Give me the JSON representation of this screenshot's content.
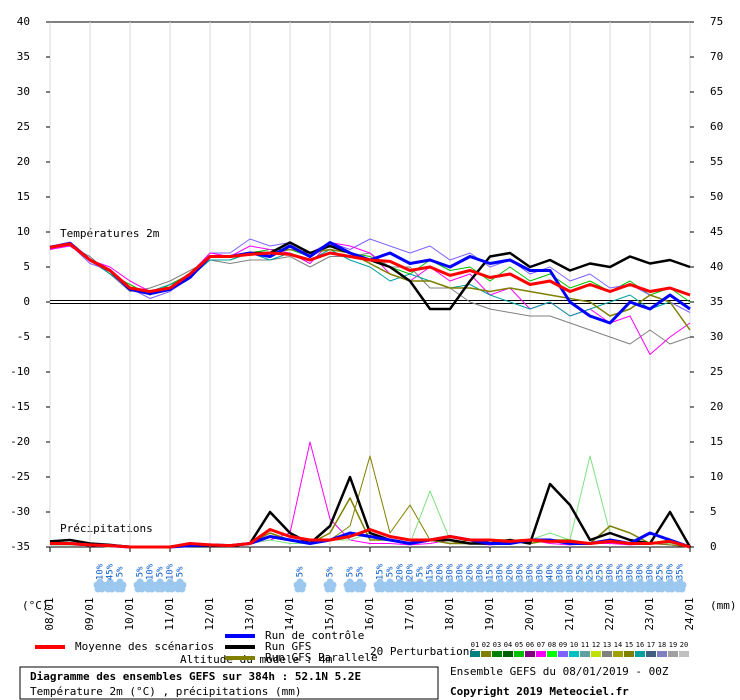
{
  "chart_data": {
    "type": "line",
    "temp_label": "Températures 2m",
    "precip_label": "Précipitations",
    "y_unit": "(°C)",
    "y2_unit": "(mm)",
    "xlim": [
      0,
      16
    ],
    "xticks": [
      {
        "value": 0,
        "label": "08/01"
      },
      {
        "value": 1,
        "label": "09/01"
      },
      {
        "value": 2,
        "label": "10/01"
      },
      {
        "value": 3,
        "label": "11/01"
      },
      {
        "value": 4,
        "label": "12/01"
      },
      {
        "value": 5,
        "label": "13/01"
      },
      {
        "value": 6,
        "label": "14/01"
      },
      {
        "value": 7,
        "label": "15/01"
      },
      {
        "value": 8,
        "label": "16/01"
      },
      {
        "value": 9,
        "label": "17/01"
      },
      {
        "value": 10,
        "label": "18/01"
      },
      {
        "value": 11,
        "label": "19/01"
      },
      {
        "value": 12,
        "label": "20/01"
      },
      {
        "value": 13,
        "label": "21/01"
      },
      {
        "value": 14,
        "label": "22/01"
      },
      {
        "value": 15,
        "label": "23/01"
      },
      {
        "value": 16,
        "label": "24/01"
      }
    ],
    "ylim": [
      -35,
      40
    ],
    "yticks": [
      40,
      35,
      30,
      25,
      20,
      15,
      10,
      5,
      0,
      -5,
      -10,
      -15,
      -20,
      -25,
      -30,
      -35
    ],
    "y2lim": [
      0,
      75
    ],
    "y2ticks": [
      75,
      70,
      65,
      60,
      55,
      50,
      45,
      40,
      35,
      30,
      25,
      20,
      15,
      10,
      5,
      0
    ],
    "grid": true,
    "x": [
      0,
      0.5,
      1,
      1.5,
      2,
      2.5,
      3,
      3.5,
      4,
      4.5,
      5,
      5.5,
      6,
      6.5,
      7,
      7.5,
      8,
      8.5,
      9,
      9.5,
      10,
      10.5,
      11,
      11.5,
      12,
      12.5,
      13,
      13.5,
      14,
      14.5,
      15,
      15.5,
      16
    ],
    "series": [
      {
        "color": "#00c000",
        "width": 1,
        "values": [
          7.8,
          8,
          6,
          4,
          2.5,
          1,
          2.5,
          4,
          6,
          6,
          7,
          7.5,
          7.5,
          6.5,
          8,
          7,
          6.5,
          5,
          4,
          6,
          4.5,
          5,
          3,
          5,
          3,
          4,
          2,
          3,
          1.5,
          3,
          1,
          2,
          0
        ]
      },
      {
        "color": "#8060ff",
        "width": 1,
        "values": [
          7.5,
          8.2,
          5.5,
          4.5,
          2,
          0.5,
          1.5,
          3.5,
          7,
          7,
          9,
          8,
          8.5,
          7,
          8.5,
          7.5,
          9,
          8,
          7,
          8,
          6,
          7,
          5,
          6,
          4,
          5,
          3,
          4,
          2,
          2.5,
          1,
          0,
          -1.5
        ]
      },
      {
        "color": "#808080",
        "width": 1,
        "values": [
          7.8,
          8,
          6.5,
          4,
          1.5,
          2,
          3,
          4.5,
          6,
          5.5,
          6,
          6,
          6.5,
          5,
          6.5,
          6.5,
          7,
          5,
          5,
          2,
          2,
          0,
          -1,
          -1.5,
          -2,
          -2,
          -3,
          -4,
          -5,
          -6,
          -4,
          -6,
          -5
        ]
      },
      {
        "color": "#ff00ff",
        "width": 1,
        "values": [
          7.5,
          8,
          6,
          5,
          3,
          1.5,
          2,
          4,
          7,
          6.5,
          8,
          7.5,
          7,
          5.5,
          8.5,
          8,
          7,
          4,
          3,
          5,
          3,
          4,
          1,
          2,
          -1,
          0,
          -2,
          -1,
          -3,
          -2,
          -7.5,
          -5,
          -3
        ]
      },
      {
        "color": "#00a0a0",
        "width": 1,
        "values": [
          8,
          8.3,
          6,
          4,
          2,
          1.5,
          2.5,
          3.5,
          6,
          6,
          7,
          6,
          7,
          6,
          7.5,
          6,
          5,
          3,
          4,
          3,
          2,
          2.5,
          1,
          0,
          -1,
          0,
          -2,
          -1,
          0,
          1,
          -1,
          0,
          -4
        ]
      },
      {
        "name": "Run GFS Parallele",
        "color": "#808000",
        "width": 1.5,
        "values": [
          7.8,
          8.2,
          6,
          4.5,
          2,
          1.5,
          2,
          3.5,
          6.5,
          6.5,
          7,
          7,
          7.5,
          7,
          7.5,
          7,
          5.5,
          4,
          3,
          3,
          2,
          2,
          1.5,
          2,
          1.5,
          1,
          0.5,
          0,
          -2,
          -1,
          1,
          0,
          -4
        ]
      },
      {
        "name": "Run GFS",
        "color": "#000000",
        "width": 2.5,
        "values": [
          7.8,
          8.3,
          6,
          4.5,
          2,
          1.2,
          2,
          3.8,
          6.5,
          6.5,
          7,
          7,
          8.5,
          7,
          8,
          7,
          6,
          5,
          3,
          -1,
          -1,
          3,
          6.5,
          7,
          5,
          6,
          4.5,
          5.5,
          5,
          6.5,
          5.5,
          6,
          5
        ]
      },
      {
        "name": "Run de contrôle",
        "color": "#0000ff",
        "width": 3,
        "values": [
          7.8,
          8.4,
          6,
          4.5,
          1.8,
          1.2,
          1.8,
          3.5,
          6.5,
          6.5,
          7,
          6.5,
          8,
          6.5,
          8.5,
          7,
          6,
          7,
          5.5,
          6,
          5,
          6.5,
          5.5,
          6,
          4.5,
          4.5,
          0,
          -2,
          -3,
          0,
          -1,
          1,
          -1
        ]
      },
      {
        "name": "Moyenne des scénarios",
        "color": "#ff0000",
        "width": 3,
        "values": [
          7.8,
          8.3,
          6,
          4.5,
          2,
          1.5,
          2,
          4,
          6.5,
          6.5,
          6.8,
          7,
          6.8,
          6,
          7,
          6.5,
          6,
          5.8,
          4.5,
          5,
          3.8,
          4.5,
          3.5,
          4,
          2.5,
          3,
          1.5,
          2.5,
          1.5,
          2.5,
          1.5,
          2,
          1
        ]
      }
    ],
    "precip_series": [
      {
        "color": "#ff00ff",
        "width": 1,
        "axis": "y2",
        "values": [
          0.3,
          0.3,
          0.2,
          0,
          0,
          0,
          0,
          0.5,
          0.3,
          0.2,
          0.5,
          1,
          2,
          15,
          4,
          1,
          0.5,
          0.5,
          0.3,
          0.5,
          1,
          0.5,
          0.3,
          0.5,
          1,
          0.5,
          0.3,
          0.5,
          0.5,
          0.3,
          0.5,
          0.3,
          0
        ]
      },
      {
        "color": "#808000",
        "width": 1,
        "axis": "y2",
        "values": [
          0.5,
          0.3,
          0.2,
          0,
          0,
          0,
          0,
          0.3,
          0.2,
          0.2,
          0.5,
          2,
          1,
          0.5,
          1,
          3,
          13,
          2,
          6,
          1,
          0.5,
          1,
          0.5,
          1,
          0.5,
          1,
          0.5,
          0.5,
          1,
          0.5,
          0.5,
          0.3,
          0
        ]
      },
      {
        "color": "#80e080",
        "width": 1,
        "axis": "y2",
        "values": [
          0.3,
          0.3,
          0.2,
          0,
          0,
          0,
          0,
          0.5,
          0.3,
          0.2,
          0.5,
          1,
          0.5,
          0.5,
          1,
          1,
          2,
          1,
          0.5,
          8,
          1,
          0.5,
          1,
          0.5,
          1,
          2,
          1,
          13,
          2,
          1,
          0.5,
          0.5,
          0
        ]
      },
      {
        "color": "#808000",
        "width": 1.5,
        "axis": "y2",
        "values": [
          0.5,
          0.5,
          0.3,
          0.2,
          0,
          0,
          0,
          0.5,
          0.2,
          0.3,
          0.5,
          2,
          1,
          0.5,
          2,
          7,
          1,
          1,
          0.5,
          1,
          0.5,
          0.5,
          1,
          1,
          0.5,
          1,
          1,
          0.5,
          3,
          2,
          0.5,
          1,
          0
        ]
      },
      {
        "color": "#000000",
        "width": 2.5,
        "axis": "y2",
        "values": [
          0.8,
          1,
          0.5,
          0.3,
          0,
          0,
          0,
          0.5,
          0.3,
          0.2,
          0.5,
          5,
          2,
          0.5,
          3,
          10,
          2,
          1,
          0.5,
          1,
          1,
          0.5,
          0.5,
          1,
          0.5,
          9,
          6,
          1,
          2,
          1,
          0.5,
          5,
          0
        ]
      },
      {
        "color": "#0000ff",
        "width": 3,
        "axis": "y2",
        "values": [
          0.5,
          0.5,
          0.3,
          0.2,
          0,
          0,
          0,
          0.2,
          0.3,
          0.2,
          0.5,
          1.5,
          1,
          0.5,
          1,
          2,
          1.5,
          1,
          0.5,
          1,
          1.5,
          1,
          0.5,
          0.5,
          1,
          1,
          0.5,
          0.5,
          1,
          0.5,
          2,
          1,
          0
        ]
      },
      {
        "color": "#ff0000",
        "width": 3,
        "axis": "y2",
        "values": [
          0.5,
          0.5,
          0.3,
          0.2,
          0,
          0,
          0,
          0.5,
          0.3,
          0.2,
          0.5,
          2.5,
          1.5,
          1,
          1,
          1.5,
          2.5,
          1.5,
          1,
          1,
          1.5,
          1,
          1,
          0.8,
          1,
          0.8,
          0.8,
          0.5,
          0.8,
          0.5,
          0.5,
          0.8,
          0
        ]
      }
    ],
    "precip_probability": [
      {
        "x": 1.25,
        "value": 10,
        "label": "10%"
      },
      {
        "x": 1.5,
        "value": 45,
        "label": "45%"
      },
      {
        "x": 1.75,
        "value": 5,
        "label": "5%"
      },
      {
        "x": 2.25,
        "value": 5,
        "label": "5%"
      },
      {
        "x": 2.5,
        "value": 10,
        "label": "10%"
      },
      {
        "x": 2.75,
        "value": 5,
        "label": "5%"
      },
      {
        "x": 3,
        "value": 10,
        "label": "10%"
      },
      {
        "x": 3.25,
        "value": 5,
        "label": "5%"
      },
      {
        "x": 6.25,
        "value": 5,
        "label": "5%"
      },
      {
        "x": 7,
        "value": 5,
        "label": "5%"
      },
      {
        "x": 7.5,
        "value": 5,
        "label": "5%"
      },
      {
        "x": 7.75,
        "value": 5,
        "label": "5%"
      },
      {
        "x": 8.25,
        "value": 15,
        "label": "15%"
      },
      {
        "x": 8.5,
        "value": 5,
        "label": "5%"
      },
      {
        "x": 8.75,
        "value": 20,
        "label": "20%"
      },
      {
        "x": 9,
        "value": 20,
        "label": "20%"
      },
      {
        "x": 9.25,
        "value": 5,
        "label": "5%"
      },
      {
        "x": 9.5,
        "value": 15,
        "label": "15%"
      },
      {
        "x": 9.75,
        "value": 20,
        "label": "20%"
      },
      {
        "x": 10,
        "value": 30,
        "label": "30%"
      },
      {
        "x": 10.25,
        "value": 30,
        "label": "30%"
      },
      {
        "x": 10.5,
        "value": 20,
        "label": "20%"
      },
      {
        "x": 10.75,
        "value": 30,
        "label": "30%"
      },
      {
        "x": 11,
        "value": 15,
        "label": "15%"
      },
      {
        "x": 11.25,
        "value": 30,
        "label": "30%"
      },
      {
        "x": 11.5,
        "value": 20,
        "label": "20%"
      },
      {
        "x": 11.75,
        "value": 30,
        "label": "30%"
      },
      {
        "x": 12,
        "value": 30,
        "label": "30%"
      },
      {
        "x": 12.25,
        "value": 30,
        "label": "30%"
      },
      {
        "x": 12.5,
        "value": 40,
        "label": "40%"
      },
      {
        "x": 12.75,
        "value": 30,
        "label": "30%"
      },
      {
        "x": 13,
        "value": 30,
        "label": "30%"
      },
      {
        "x": 13.25,
        "value": 25,
        "label": "25%"
      },
      {
        "x": 13.5,
        "value": 25,
        "label": "25%"
      },
      {
        "x": 13.75,
        "value": 25,
        "label": "25%"
      },
      {
        "x": 14,
        "value": 30,
        "label": "30%"
      },
      {
        "x": 14.25,
        "value": 35,
        "label": "35%"
      },
      {
        "x": 14.5,
        "value": 30,
        "label": "30%"
      },
      {
        "x": 14.75,
        "value": 30,
        "label": "30%"
      },
      {
        "x": 15,
        "value": 30,
        "label": "30%"
      },
      {
        "x": 15.25,
        "value": 25,
        "label": "25%"
      },
      {
        "x": 15.5,
        "value": 30,
        "label": "30%"
      },
      {
        "x": 15.75,
        "value": 35,
        "label": "35%"
      }
    ],
    "perturbations_label": "20 Perturbations",
    "perturbation_codes": [
      "01",
      "02",
      "03",
      "04",
      "05",
      "06",
      "07",
      "08",
      "09",
      "10",
      "11",
      "12",
      "13",
      "14",
      "15",
      "16",
      "17",
      "18",
      "19",
      "20"
    ],
    "perturbation_colors": [
      "#008080",
      "#808000",
      "#008000",
      "#006000",
      "#00c000",
      "#800080",
      "#ff00ff",
      "#00ff00",
      "#8060ff",
      "#00c0c0",
      "#60a0a0",
      "#c0e000",
      "#808080",
      "#a0a000",
      "#808000",
      "#00a0a0",
      "#406080",
      "#8080c0",
      "#a0a0a0",
      "#c0c0c0"
    ],
    "altitude_note": "Altitude du modele : 4m",
    "title": "Diagramme des ensembles GEFS sur 384h : 52.1N 5.2E",
    "subtitle": "Température 2m (°C) , précipitations (mm)",
    "run_info": "Ensemble GEFS du 08/01/2019 - 00Z",
    "copyright": "Copyright 2019 Meteociel.fr"
  }
}
